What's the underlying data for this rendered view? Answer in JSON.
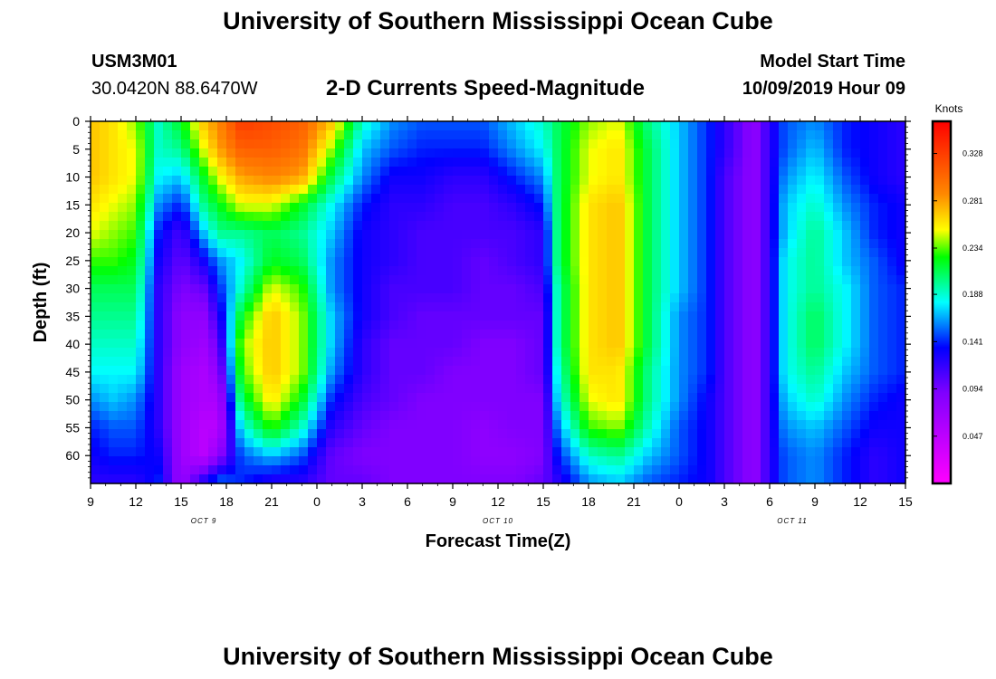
{
  "header": {
    "title": "University of Southern Mississippi Ocean Cube",
    "station_id": "USM3M01",
    "station_coords": "30.0420N 88.6470W",
    "subtitle": "2-D Currents Speed-Magnitude",
    "model_start_label": "Model Start Time",
    "model_start_value": "10/09/2019 Hour 09"
  },
  "footer": {
    "title": "University of Southern Mississippi Ocean Cube"
  },
  "chart_data": {
    "type": "heatmap",
    "title": "2-D Currents Speed-Magnitude",
    "xlabel": "Forecast Time(Z)",
    "ylabel": "Depth (ft)",
    "x_range_hours": [
      0,
      54
    ],
    "y_range_ft": [
      0,
      65
    ],
    "x_ticks": [
      {
        "label": "9",
        "hour": 0
      },
      {
        "label": "12",
        "hour": 3
      },
      {
        "label": "15",
        "hour": 6
      },
      {
        "label": "18",
        "hour": 9
      },
      {
        "label": "21",
        "hour": 12
      },
      {
        "label": "0",
        "hour": 15
      },
      {
        "label": "3",
        "hour": 18
      },
      {
        "label": "6",
        "hour": 21
      },
      {
        "label": "9",
        "hour": 24
      },
      {
        "label": "12",
        "hour": 27
      },
      {
        "label": "15",
        "hour": 30
      },
      {
        "label": "18",
        "hour": 33
      },
      {
        "label": "21",
        "hour": 36
      },
      {
        "label": "0",
        "hour": 39
      },
      {
        "label": "3",
        "hour": 42
      },
      {
        "label": "6",
        "hour": 45
      },
      {
        "label": "9",
        "hour": 48
      },
      {
        "label": "12",
        "hour": 51
      },
      {
        "label": "15",
        "hour": 54
      }
    ],
    "date_labels": [
      {
        "label": "OCT 9",
        "hour": 7.5
      },
      {
        "label": "OCT 10",
        "hour": 27
      },
      {
        "label": "OCT 11",
        "hour": 46.5
      }
    ],
    "y_ticks": [
      0,
      5,
      10,
      15,
      20,
      25,
      30,
      35,
      40,
      45,
      50,
      55,
      60
    ],
    "colorbar": {
      "unit": "Knots",
      "range": [
        0.0,
        0.36
      ],
      "tick_values": [
        0.328,
        0.281,
        0.234,
        0.188,
        0.141,
        0.094,
        0.047
      ]
    },
    "columns_hours": [
      0,
      1.5,
      3,
      4.5,
      6,
      7.5,
      8.5,
      10,
      12,
      14,
      16,
      18,
      20,
      22,
      24,
      26,
      28,
      30,
      31,
      33,
      35,
      37,
      39,
      41,
      42,
      44,
      45,
      46,
      48,
      50,
      52,
      54
    ],
    "rows_ft": [
      0,
      5,
      10,
      15,
      20,
      25,
      30,
      35,
      40,
      45,
      50,
      55,
      60,
      65
    ],
    "speed_knots": [
      [
        0.27,
        0.27,
        0.27,
        0.26,
        0.25,
        0.23,
        0.21,
        0.2,
        0.19,
        0.18,
        0.16,
        0.14,
        0.13,
        0.12
      ],
      [
        0.26,
        0.26,
        0.26,
        0.25,
        0.24,
        0.23,
        0.21,
        0.2,
        0.19,
        0.18,
        0.17,
        0.15,
        0.14,
        0.12
      ],
      [
        0.24,
        0.25,
        0.25,
        0.24,
        0.23,
        0.22,
        0.21,
        0.2,
        0.19,
        0.18,
        0.16,
        0.15,
        0.14,
        0.12
      ],
      [
        0.19,
        0.19,
        0.18,
        0.16,
        0.14,
        0.13,
        0.12,
        0.12,
        0.12,
        0.12,
        0.12,
        0.12,
        0.13,
        0.14
      ],
      [
        0.22,
        0.2,
        0.17,
        0.14,
        0.11,
        0.1,
        0.09,
        0.08,
        0.08,
        0.07,
        0.07,
        0.07,
        0.07,
        0.07
      ],
      [
        0.27,
        0.25,
        0.22,
        0.2,
        0.17,
        0.13,
        0.1,
        0.08,
        0.07,
        0.06,
        0.06,
        0.05,
        0.05,
        0.13
      ],
      [
        0.29,
        0.28,
        0.25,
        0.22,
        0.2,
        0.16,
        0.14,
        0.12,
        0.1,
        0.08,
        0.06,
        0.05,
        0.08,
        0.16
      ],
      [
        0.33,
        0.31,
        0.28,
        0.25,
        0.2,
        0.18,
        0.19,
        0.22,
        0.24,
        0.23,
        0.21,
        0.18,
        0.15,
        0.14
      ],
      [
        0.32,
        0.31,
        0.29,
        0.25,
        0.21,
        0.22,
        0.25,
        0.27,
        0.27,
        0.27,
        0.26,
        0.23,
        0.17,
        0.12
      ],
      [
        0.31,
        0.3,
        0.28,
        0.22,
        0.2,
        0.21,
        0.23,
        0.24,
        0.24,
        0.24,
        0.22,
        0.19,
        0.15,
        0.12
      ],
      [
        0.27,
        0.24,
        0.21,
        0.18,
        0.17,
        0.16,
        0.16,
        0.17,
        0.17,
        0.16,
        0.14,
        0.12,
        0.1,
        0.1
      ],
      [
        0.19,
        0.17,
        0.16,
        0.14,
        0.13,
        0.13,
        0.13,
        0.13,
        0.12,
        0.12,
        0.11,
        0.1,
        0.09,
        0.1
      ],
      [
        0.16,
        0.15,
        0.13,
        0.12,
        0.12,
        0.12,
        0.11,
        0.11,
        0.1,
        0.1,
        0.1,
        0.09,
        0.09,
        0.09
      ],
      [
        0.15,
        0.14,
        0.13,
        0.12,
        0.11,
        0.11,
        0.11,
        0.1,
        0.1,
        0.1,
        0.09,
        0.09,
        0.09,
        0.09
      ],
      [
        0.15,
        0.14,
        0.12,
        0.11,
        0.11,
        0.11,
        0.11,
        0.1,
        0.1,
        0.09,
        0.09,
        0.09,
        0.09,
        0.09
      ],
      [
        0.15,
        0.14,
        0.12,
        0.11,
        0.11,
        0.1,
        0.1,
        0.1,
        0.09,
        0.09,
        0.09,
        0.08,
        0.08,
        0.09
      ],
      [
        0.17,
        0.16,
        0.14,
        0.12,
        0.11,
        0.11,
        0.1,
        0.1,
        0.09,
        0.09,
        0.09,
        0.09,
        0.08,
        0.09
      ],
      [
        0.19,
        0.18,
        0.16,
        0.14,
        0.12,
        0.12,
        0.11,
        0.1,
        0.1,
        0.1,
        0.09,
        0.09,
        0.09,
        0.1
      ],
      [
        0.21,
        0.21,
        0.21,
        0.21,
        0.21,
        0.21,
        0.2,
        0.2,
        0.2,
        0.19,
        0.18,
        0.16,
        0.14,
        0.12
      ],
      [
        0.24,
        0.25,
        0.25,
        0.26,
        0.26,
        0.26,
        0.26,
        0.26,
        0.26,
        0.26,
        0.25,
        0.23,
        0.19,
        0.16
      ],
      [
        0.25,
        0.26,
        0.26,
        0.27,
        0.27,
        0.27,
        0.27,
        0.27,
        0.27,
        0.26,
        0.26,
        0.24,
        0.2,
        0.17
      ],
      [
        0.2,
        0.21,
        0.21,
        0.21,
        0.21,
        0.21,
        0.21,
        0.21,
        0.21,
        0.2,
        0.2,
        0.19,
        0.17,
        0.15
      ],
      [
        0.17,
        0.17,
        0.17,
        0.17,
        0.17,
        0.17,
        0.17,
        0.16,
        0.16,
        0.16,
        0.16,
        0.15,
        0.15,
        0.14
      ],
      [
        0.14,
        0.14,
        0.14,
        0.14,
        0.14,
        0.14,
        0.14,
        0.14,
        0.14,
        0.14,
        0.13,
        0.13,
        0.13,
        0.13
      ],
      [
        0.12,
        0.12,
        0.11,
        0.11,
        0.11,
        0.11,
        0.11,
        0.11,
        0.11,
        0.11,
        0.11,
        0.11,
        0.11,
        0.11
      ],
      [
        0.08,
        0.08,
        0.08,
        0.08,
        0.08,
        0.08,
        0.08,
        0.08,
        0.08,
        0.08,
        0.08,
        0.08,
        0.08,
        0.08
      ],
      [
        0.12,
        0.12,
        0.12,
        0.12,
        0.12,
        0.12,
        0.12,
        0.12,
        0.12,
        0.12,
        0.12,
        0.12,
        0.12,
        0.12
      ],
      [
        0.15,
        0.15,
        0.16,
        0.17,
        0.17,
        0.18,
        0.18,
        0.18,
        0.18,
        0.18,
        0.17,
        0.16,
        0.15,
        0.15
      ],
      [
        0.16,
        0.17,
        0.18,
        0.19,
        0.2,
        0.2,
        0.2,
        0.21,
        0.21,
        0.2,
        0.19,
        0.17,
        0.16,
        0.16
      ],
      [
        0.14,
        0.14,
        0.15,
        0.16,
        0.17,
        0.17,
        0.18,
        0.18,
        0.18,
        0.17,
        0.16,
        0.15,
        0.14,
        0.14
      ],
      [
        0.13,
        0.13,
        0.13,
        0.14,
        0.14,
        0.15,
        0.15,
        0.15,
        0.15,
        0.15,
        0.14,
        0.13,
        0.12,
        0.12
      ],
      [
        0.12,
        0.12,
        0.12,
        0.13,
        0.13,
        0.13,
        0.14,
        0.14,
        0.14,
        0.14,
        0.13,
        0.13,
        0.13,
        0.13
      ]
    ]
  }
}
